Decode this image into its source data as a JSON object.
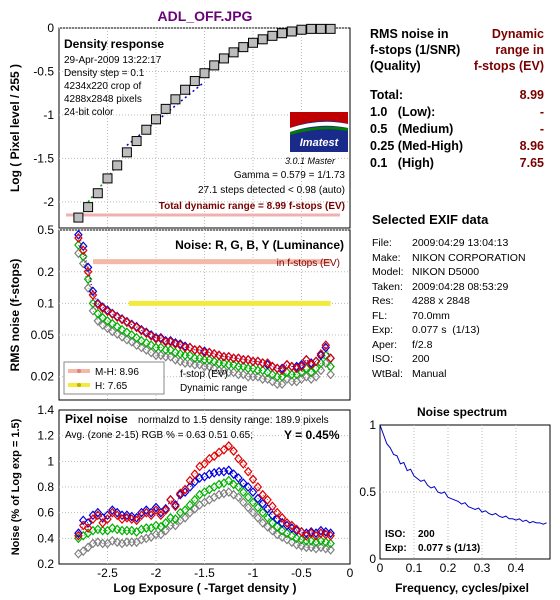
{
  "file_title": "ADL_OFF.JPG",
  "summary": {
    "header_left": "RMS noise in\nf-stops (1/SNR)\n(Quality)",
    "header_right": "Dynamic\nrange in\nf-stops (EV)",
    "rows": [
      {
        "label": "Total:",
        "value": "8.99"
      },
      {
        "label": "1.0   (Low):",
        "value": "-"
      },
      {
        "label": "0.5   (Medium)",
        "value": "-"
      },
      {
        "label": "0.25 (Med-High)",
        "value": "8.96"
      },
      {
        "label": "0.1   (High)",
        "value": "7.65"
      }
    ]
  },
  "exif": {
    "title": "Selected EXIF data",
    "rows": [
      {
        "k": "File:",
        "v": "2009:04:29 13:04:13"
      },
      {
        "k": "Make:",
        "v": "NIKON CORPORATION"
      },
      {
        "k": "Model:",
        "v": "NIKON D5000"
      },
      {
        "k": "Taken:",
        "v": "2009:04:28 08:53:29"
      },
      {
        "k": "Res:",
        "v": "4288 x 2848"
      },
      {
        "k": "FL:",
        "v": "70.0mm"
      },
      {
        "k": "Exp:",
        "v": "0.077 s  (1/13)"
      },
      {
        "k": "Aper:",
        "v": "f/2.8"
      },
      {
        "k": "ISO:",
        "v": "200"
      },
      {
        "k": "WtBal:",
        "v": "Manual"
      }
    ]
  },
  "colors": {
    "gray_patch": "#bdbdbd",
    "red": "#e00000",
    "green": "#00b000",
    "blue": "#0000e0",
    "gray_series": "#808080",
    "salmon_line": "#f4b8a8",
    "yellow_line": "#f2ea3c",
    "dark_red": "#7a0000",
    "spectrum": "#0000c0"
  },
  "chart_data": [
    {
      "type": "scatter",
      "panel": "density",
      "title": "Density response",
      "info": [
        "29-Apr-2009 13:22:17",
        "Density step = 0.1",
        "4234x220 crop of",
        "4288x2848 pixels",
        "24-bit color"
      ],
      "ylabel": "Log ( Pixel level / 255 )",
      "ylim": [
        -2.3,
        0
      ],
      "xlim": [
        -3,
        0
      ],
      "yticks": [
        0,
        -0.5,
        -1,
        -1.5,
        -2
      ],
      "yticklabels": [
        "0",
        "-0.5",
        "-1",
        "-1.5",
        "-2"
      ],
      "x": [
        -2.8,
        -2.7,
        -2.6,
        -2.5,
        -2.4,
        -2.3,
        -2.2,
        -2.1,
        -2.0,
        -1.9,
        -1.8,
        -1.7,
        -1.6,
        -1.5,
        -1.4,
        -1.3,
        -1.2,
        -1.1,
        -1.0,
        -0.9,
        -0.8,
        -0.7,
        -0.6,
        -0.5,
        -0.4,
        -0.3,
        -0.2
      ],
      "y": [
        -2.18,
        -2.06,
        -1.9,
        -1.73,
        -1.58,
        -1.43,
        -1.3,
        -1.17,
        -1.05,
        -0.93,
        -0.82,
        -0.71,
        -0.61,
        -0.52,
        -0.43,
        -0.35,
        -0.28,
        -0.22,
        -0.17,
        -0.13,
        -0.09,
        -0.06,
        -0.04,
        -0.02,
        -0.01,
        -0.01,
        -0.01
      ],
      "gamma_text": "Gamma = 0.579 = 1/1.73",
      "steps_text": "27.1 steps detected < 0.98 (auto)",
      "total_dr_text": "Total dynamic range = 8.99 f-stops (EV)",
      "logo_text": "Imatest",
      "version_text": "3.0.1  Master"
    },
    {
      "type": "line",
      "panel": "noise_fstops",
      "title": "Noise: R, G, B, Y (Luminance)",
      "subtitle": "in f-stops (EV)",
      "ylabel": "RMS noise (f-stops)",
      "yscale": "log",
      "ylim": [
        0.012,
        0.5
      ],
      "xlim": [
        -3,
        0
      ],
      "yticks": [
        0.5,
        0.2,
        0.1,
        0.05,
        0.02
      ],
      "yticklabels": [
        "0.5",
        "0.2",
        "0.1",
        "0.05",
        "0.02"
      ],
      "x": [
        -2.8,
        -2.75,
        -2.7,
        -2.65,
        -2.6,
        -2.55,
        -2.5,
        -2.45,
        -2.4,
        -2.35,
        -2.3,
        -2.25,
        -2.2,
        -2.15,
        -2.1,
        -2.05,
        -2.0,
        -1.95,
        -1.9,
        -1.85,
        -1.8,
        -1.75,
        -1.7,
        -1.65,
        -1.6,
        -1.55,
        -1.5,
        -1.45,
        -1.4,
        -1.35,
        -1.3,
        -1.25,
        -1.2,
        -1.15,
        -1.1,
        -1.05,
        -1.0,
        -0.95,
        -0.9,
        -0.85,
        -0.8,
        -0.75,
        -0.7,
        -0.65,
        -0.6,
        -0.55,
        -0.5,
        -0.45,
        -0.4,
        -0.35,
        -0.3,
        -0.25,
        -0.2
      ],
      "series": [
        {
          "name": "R",
          "values": [
            0.42,
            0.32,
            0.2,
            0.12,
            0.098,
            0.09,
            0.084,
            0.079,
            0.074,
            0.07,
            0.066,
            0.062,
            0.059,
            0.055,
            0.052,
            0.049,
            0.046,
            0.046,
            0.043,
            0.043,
            0.041,
            0.04,
            0.038,
            0.038,
            0.036,
            0.036,
            0.034,
            0.034,
            0.033,
            0.032,
            0.031,
            0.031,
            0.03,
            0.03,
            0.029,
            0.029,
            0.028,
            0.028,
            0.027,
            0.027,
            0.025,
            0.024,
            0.023,
            0.026,
            0.025,
            0.024,
            0.025,
            0.029,
            0.026,
            0.028,
            0.033,
            0.04,
            0.03
          ]
        },
        {
          "name": "G",
          "values": [
            0.36,
            0.28,
            0.17,
            0.1,
            0.08,
            0.073,
            0.068,
            0.064,
            0.06,
            0.056,
            0.053,
            0.05,
            0.047,
            0.044,
            0.042,
            0.04,
            0.038,
            0.038,
            0.036,
            0.036,
            0.034,
            0.033,
            0.032,
            0.032,
            0.03,
            0.03,
            0.029,
            0.029,
            0.028,
            0.027,
            0.027,
            0.026,
            0.026,
            0.025,
            0.025,
            0.024,
            0.024,
            0.023,
            0.023,
            0.022,
            0.021,
            0.02,
            0.02,
            0.022,
            0.021,
            0.021,
            0.022,
            0.024,
            0.022,
            0.024,
            0.027,
            0.032,
            0.025
          ]
        },
        {
          "name": "B",
          "values": [
            0.45,
            0.35,
            0.22,
            0.13,
            0.1,
            0.092,
            0.086,
            0.08,
            0.075,
            0.071,
            0.067,
            0.063,
            0.06,
            0.056,
            0.053,
            0.05,
            0.047,
            0.047,
            0.044,
            0.044,
            0.042,
            0.041,
            0.039,
            0.038,
            0.036,
            0.036,
            0.035,
            0.034,
            0.033,
            0.032,
            0.031,
            0.031,
            0.03,
            0.03,
            0.029,
            0.029,
            0.028,
            0.028,
            0.027,
            0.026,
            0.025,
            0.024,
            0.024,
            0.026,
            0.025,
            0.025,
            0.026,
            0.029,
            0.027,
            0.028,
            0.032,
            0.038,
            0.03
          ]
        },
        {
          "name": "Y",
          "values": [
            0.3,
            0.24,
            0.14,
            0.085,
            0.068,
            0.062,
            0.058,
            0.054,
            0.051,
            0.048,
            0.045,
            0.043,
            0.04,
            0.038,
            0.036,
            0.034,
            0.032,
            0.032,
            0.031,
            0.031,
            0.029,
            0.028,
            0.027,
            0.027,
            0.026,
            0.026,
            0.025,
            0.025,
            0.024,
            0.023,
            0.023,
            0.022,
            0.022,
            0.021,
            0.021,
            0.02,
            0.02,
            0.02,
            0.019,
            0.019,
            0.018,
            0.017,
            0.017,
            0.019,
            0.018,
            0.018,
            0.019,
            0.02,
            0.019,
            0.02,
            0.023,
            0.027,
            0.021
          ]
        }
      ],
      "thresholds": [
        {
          "label": "M-H: 8.96",
          "value": 0.25,
          "x_start": -2.65,
          "x_end": -0.2,
          "color": "salmon"
        },
        {
          "label": "H:   7.65",
          "value": 0.1,
          "x_start": -2.28,
          "x_end": -0.2,
          "color": "yellow"
        }
      ],
      "annotation": [
        "f-stop (EV)",
        "Dynamic range"
      ]
    },
    {
      "type": "line",
      "panel": "pixel_noise",
      "title": "Pixel noise",
      "subtitle": "normalzd to 1.5 density range: 189.9 pixels",
      "avg_text": "Avg. (zone 2-15) RGB % = 0.63  0.51  0.65;",
      "y_text": "Y = 0.45%",
      "ylabel": "Noise (% of Log exp = 1.5)",
      "xlabel": "Log Exposure ( -Target density )",
      "ylim": [
        0.2,
        1.4
      ],
      "xlim": [
        -3,
        0
      ],
      "yticks": [
        0.2,
        0.4,
        0.6,
        0.8,
        1,
        1.2,
        1.4
      ],
      "yticklabels": [
        "0.2",
        "0.4",
        "0.6",
        "0.8",
        "1",
        "1.2",
        "1.4"
      ],
      "xticks": [
        -2.5,
        -2,
        -1.5,
        -1,
        -0.5,
        0
      ],
      "xticklabels": [
        "-2.5",
        "-2",
        "-1.5",
        "-1",
        "-0.5",
        "0"
      ],
      "x": [
        -2.8,
        -2.75,
        -2.7,
        -2.65,
        -2.6,
        -2.55,
        -2.5,
        -2.45,
        -2.4,
        -2.35,
        -2.3,
        -2.25,
        -2.2,
        -2.15,
        -2.1,
        -2.05,
        -2.0,
        -1.95,
        -1.9,
        -1.85,
        -1.8,
        -1.75,
        -1.7,
        -1.65,
        -1.6,
        -1.55,
        -1.5,
        -1.45,
        -1.4,
        -1.35,
        -1.3,
        -1.25,
        -1.2,
        -1.15,
        -1.1,
        -1.05,
        -1.0,
        -0.95,
        -0.9,
        -0.85,
        -0.8,
        -0.75,
        -0.7,
        -0.65,
        -0.6,
        -0.55,
        -0.5,
        -0.45,
        -0.4,
        -0.35,
        -0.3,
        -0.25,
        -0.2
      ],
      "series": [
        {
          "name": "R",
          "values": [
            0.42,
            0.5,
            0.48,
            0.55,
            0.58,
            0.52,
            0.55,
            0.6,
            0.58,
            0.55,
            0.56,
            0.55,
            0.54,
            0.58,
            0.6,
            0.58,
            0.62,
            0.58,
            0.62,
            0.7,
            0.65,
            0.75,
            0.78,
            0.85,
            0.9,
            0.96,
            0.98,
            1.02,
            1.04,
            1.07,
            1.09,
            1.12,
            1.08,
            1.02,
            0.98,
            0.92,
            0.86,
            0.8,
            0.74,
            0.7,
            0.65,
            0.6,
            0.56,
            0.52,
            0.5,
            0.47,
            0.45,
            0.42,
            0.44,
            0.42,
            0.44,
            0.43,
            0.42
          ]
        },
        {
          "name": "G",
          "values": [
            0.4,
            0.42,
            0.44,
            0.46,
            0.47,
            0.46,
            0.46,
            0.48,
            0.47,
            0.46,
            0.46,
            0.46,
            0.45,
            0.47,
            0.48,
            0.48,
            0.5,
            0.49,
            0.52,
            0.56,
            0.55,
            0.6,
            0.62,
            0.66,
            0.7,
            0.74,
            0.76,
            0.78,
            0.8,
            0.82,
            0.83,
            0.85,
            0.82,
            0.8,
            0.76,
            0.72,
            0.68,
            0.64,
            0.6,
            0.56,
            0.52,
            0.49,
            0.46,
            0.44,
            0.42,
            0.4,
            0.39,
            0.38,
            0.38,
            0.37,
            0.38,
            0.37,
            0.36
          ]
        },
        {
          "name": "B",
          "values": [
            0.44,
            0.54,
            0.52,
            0.58,
            0.6,
            0.56,
            0.58,
            0.62,
            0.6,
            0.58,
            0.58,
            0.57,
            0.56,
            0.6,
            0.62,
            0.6,
            0.64,
            0.6,
            0.63,
            0.7,
            0.66,
            0.74,
            0.76,
            0.8,
            0.84,
            0.87,
            0.88,
            0.9,
            0.91,
            0.92,
            0.92,
            0.93,
            0.9,
            0.87,
            0.83,
            0.8,
            0.76,
            0.71,
            0.67,
            0.63,
            0.58,
            0.55,
            0.52,
            0.5,
            0.48,
            0.46,
            0.45,
            0.44,
            0.45,
            0.44,
            0.46,
            0.45,
            0.44
          ]
        },
        {
          "name": "Y",
          "values": [
            0.28,
            0.3,
            0.33,
            0.36,
            0.37,
            0.36,
            0.36,
            0.38,
            0.37,
            0.36,
            0.37,
            0.37,
            0.37,
            0.39,
            0.4,
            0.41,
            0.43,
            0.43,
            0.46,
            0.5,
            0.5,
            0.54,
            0.56,
            0.6,
            0.63,
            0.66,
            0.68,
            0.7,
            0.72,
            0.74,
            0.75,
            0.76,
            0.74,
            0.72,
            0.68,
            0.64,
            0.6,
            0.56,
            0.52,
            0.49,
            0.46,
            0.43,
            0.41,
            0.39,
            0.37,
            0.35,
            0.34,
            0.33,
            0.33,
            0.32,
            0.33,
            0.32,
            0.31
          ]
        }
      ]
    },
    {
      "type": "line",
      "panel": "noise_spectrum",
      "title": "Noise spectrum",
      "xlabel": "Frequency, cycles/pixel",
      "ylim": [
        0,
        1
      ],
      "xlim": [
        0,
        0.5
      ],
      "yticks": [
        0,
        0.5,
        1
      ],
      "yticklabels": [
        "0",
        "0.5",
        "1"
      ],
      "xticks": [
        0,
        0.1,
        0.2,
        0.3,
        0.4
      ],
      "xticklabels": [
        "0",
        "0.1",
        "0.2",
        "0.3",
        "0.4"
      ],
      "x": [
        0.0,
        0.01,
        0.02,
        0.03,
        0.04,
        0.05,
        0.06,
        0.07,
        0.08,
        0.09,
        0.1,
        0.11,
        0.12,
        0.13,
        0.14,
        0.15,
        0.16,
        0.17,
        0.18,
        0.19,
        0.2,
        0.21,
        0.22,
        0.23,
        0.24,
        0.25,
        0.26,
        0.27,
        0.28,
        0.29,
        0.3,
        0.31,
        0.32,
        0.33,
        0.34,
        0.35,
        0.36,
        0.37,
        0.38,
        0.39,
        0.4,
        0.41,
        0.42,
        0.43,
        0.44,
        0.45,
        0.46,
        0.47,
        0.48,
        0.49
      ],
      "y": [
        1.0,
        0.93,
        0.86,
        0.83,
        0.78,
        0.77,
        0.71,
        0.72,
        0.66,
        0.67,
        0.62,
        0.6,
        0.58,
        0.59,
        0.55,
        0.53,
        0.54,
        0.5,
        0.49,
        0.5,
        0.46,
        0.45,
        0.44,
        0.43,
        0.41,
        0.42,
        0.39,
        0.38,
        0.37,
        0.38,
        0.35,
        0.36,
        0.34,
        0.33,
        0.34,
        0.32,
        0.31,
        0.32,
        0.3,
        0.3,
        0.29,
        0.3,
        0.28,
        0.29,
        0.27,
        0.28,
        0.27,
        0.27,
        0.26,
        0.27
      ],
      "iso_label": "ISO:",
      "iso_value": "200",
      "exp_label": "Exp:",
      "exp_value": "0.077 s  (1/13)"
    }
  ]
}
